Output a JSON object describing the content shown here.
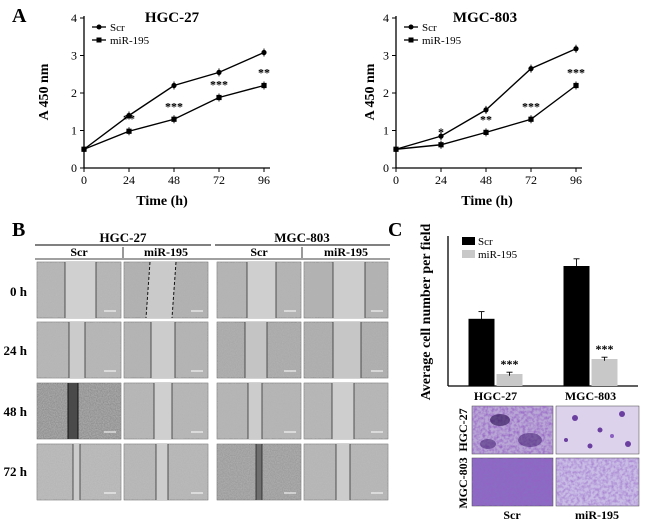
{
  "panel_a": {
    "label": "A"
  },
  "panel_b": {
    "label": "B",
    "groups": [
      "HGC-27",
      "MGC-803"
    ],
    "columns": [
      "Scr",
      "miR-195",
      "Scr",
      "miR-195"
    ],
    "rows": [
      "0 h",
      "24 h",
      "48 h",
      "72 h"
    ]
  },
  "panel_c": {
    "label": "C",
    "micro_rows": [
      "HGC-27",
      "MGC-803"
    ],
    "micro_cols": [
      "Scr",
      "miR-195"
    ]
  },
  "colors": {
    "scr": "#000000",
    "mir": "#c8c8c8",
    "micro_purple": "#6b3fa0"
  },
  "chart_data": [
    {
      "type": "line",
      "title": "HGC-27",
      "xlabel": "Time (h)",
      "ylabel": "A 450 nm",
      "x": [
        0,
        24,
        48,
        72,
        96
      ],
      "xlim": [
        0,
        96
      ],
      "ylim": [
        0,
        4
      ],
      "yticks": [
        0,
        1,
        2,
        3,
        4
      ],
      "legend": "top-left",
      "series": [
        {
          "name": "Scr",
          "values": [
            0.5,
            1.4,
            2.2,
            2.55,
            3.08
          ]
        },
        {
          "name": "miR-195",
          "values": [
            0.5,
            0.98,
            1.3,
            1.88,
            2.2
          ]
        }
      ],
      "annotations": [
        {
          "x": 24,
          "text": "**"
        },
        {
          "x": 48,
          "text": "***"
        },
        {
          "x": 72,
          "text": "***"
        },
        {
          "x": 96,
          "text": "**"
        }
      ]
    },
    {
      "type": "line",
      "title": "MGC-803",
      "xlabel": "Time (h)",
      "ylabel": "A 450 nm",
      "x": [
        0,
        24,
        48,
        72,
        96
      ],
      "xlim": [
        0,
        96
      ],
      "ylim": [
        0,
        4
      ],
      "yticks": [
        0,
        1,
        2,
        3,
        4
      ],
      "legend": "top-left",
      "series": [
        {
          "name": "Scr",
          "values": [
            0.5,
            0.85,
            1.55,
            2.65,
            3.18
          ]
        },
        {
          "name": "miR-195",
          "values": [
            0.5,
            0.62,
            0.95,
            1.3,
            2.2
          ]
        }
      ],
      "annotations": [
        {
          "x": 24,
          "text": "*"
        },
        {
          "x": 48,
          "text": "**"
        },
        {
          "x": 72,
          "text": "***"
        },
        {
          "x": 96,
          "text": "***"
        }
      ]
    },
    {
      "type": "bar",
      "title": "",
      "ylabel": "Average cell number per field",
      "categories": [
        "HGC-27",
        "MGC-803"
      ],
      "ylim": [
        0,
        250
      ],
      "legend": "top-left",
      "series": [
        {
          "name": "Scr",
          "values": [
            112,
            200
          ]
        },
        {
          "name": "miR-195",
          "values": [
            20,
            45
          ]
        }
      ],
      "annotations": [
        {
          "category": "HGC-27",
          "text": "***"
        },
        {
          "category": "MGC-803",
          "text": "***"
        }
      ]
    }
  ]
}
